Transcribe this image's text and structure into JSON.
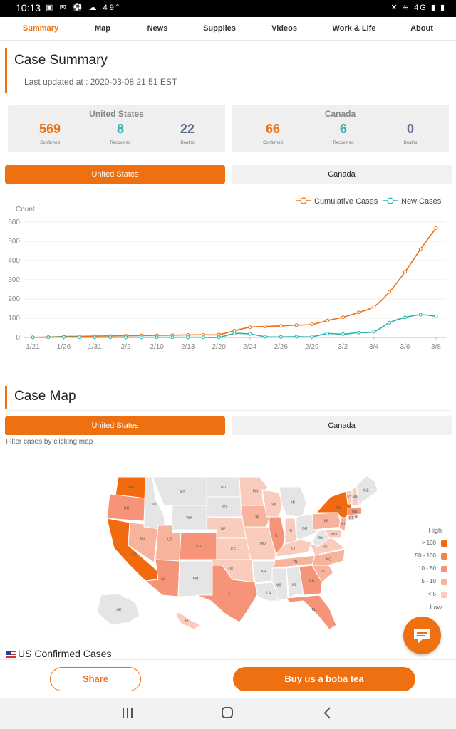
{
  "status_bar": {
    "time": "10:13",
    "temperature": "49°",
    "signal": "4G"
  },
  "nav": {
    "tabs": [
      {
        "label": "Summary",
        "active": true
      },
      {
        "label": "Map"
      },
      {
        "label": "News"
      },
      {
        "label": "Supplies"
      },
      {
        "label": "Videos"
      },
      {
        "label": "Work & Life"
      },
      {
        "label": "About"
      }
    ]
  },
  "summary": {
    "title": "Case Summary",
    "last_updated": "Last updated at : 2020-03-08 21:51 EST",
    "cards": [
      {
        "country": "United States",
        "confirmed": "569",
        "recovered": "8",
        "deaths": "22"
      },
      {
        "country": "Canada",
        "confirmed": "66",
        "recovered": "6",
        "deaths": "0"
      }
    ],
    "labels": {
      "confirmed": "Confirmed",
      "recovered": "Recovered",
      "deaths": "Deaths"
    },
    "toggle": {
      "left": "United States",
      "right": "Canada",
      "selected": "United States"
    }
  },
  "chart_data": {
    "type": "line",
    "ylabel": "Count",
    "ylim": [
      0,
      600
    ],
    "yticks": [
      0,
      100,
      200,
      300,
      400,
      500,
      600
    ],
    "x": [
      "1/21",
      "1/23",
      "1/26",
      "1/28",
      "1/31",
      "2/1",
      "2/2",
      "2/5",
      "2/10",
      "2/12",
      "2/13",
      "2/16",
      "2/20",
      "2/22",
      "2/24",
      "2/25",
      "2/26",
      "2/28",
      "2/29",
      "3/1",
      "3/2",
      "3/3",
      "3/4",
      "3/5",
      "3/6",
      "3/7",
      "3/8"
    ],
    "xticks": [
      "1/21",
      "1/26",
      "1/31",
      "2/2",
      "2/10",
      "2/13",
      "2/20",
      "2/24",
      "2/26",
      "2/29",
      "3/2",
      "3/4",
      "3/6",
      "3/8"
    ],
    "series": [
      {
        "name": "Cumulative Cases",
        "color": "#ee7011",
        "values": [
          1,
          2,
          5,
          6,
          7,
          8,
          9,
          10,
          11,
          12,
          13,
          14,
          15,
          35,
          53,
          57,
          60,
          64,
          68,
          88,
          105,
          130,
          160,
          237,
          341,
          459,
          569
        ]
      },
      {
        "name": "New Cases",
        "color": "#2ab3aa",
        "values": [
          1,
          1,
          3,
          1,
          1,
          1,
          1,
          1,
          1,
          1,
          1,
          1,
          1,
          20,
          18,
          4,
          3,
          4,
          4,
          20,
          17,
          25,
          30,
          77,
          104,
          118,
          110
        ]
      }
    ],
    "legend_placement": "top-right",
    "grid": true
  },
  "map": {
    "title": "Case Map",
    "toggle": {
      "left": "United States",
      "right": "Canada",
      "selected": "United States"
    },
    "filter_note": "Filter cases by clicking map",
    "legend": {
      "high": "High",
      "low": "Low",
      "levels": [
        {
          "label": "> 100",
          "color": "#f26a10"
        },
        {
          "label": "50 - 100",
          "color": "#f5834a"
        },
        {
          "label": "10 - 50",
          "color": "#f59478"
        },
        {
          "label": "5 - 10",
          "color": "#f7b39c"
        },
        {
          "label": "< 5",
          "color": "#f9ccbd"
        }
      ],
      "no_data_color": "#e5e5e5"
    },
    "states": [
      {
        "abbr": "WA",
        "level": "> 100"
      },
      {
        "abbr": "OR",
        "level": "10 - 50"
      },
      {
        "abbr": "CA",
        "level": "> 100"
      },
      {
        "abbr": "NV",
        "level": "5 - 10"
      },
      {
        "abbr": "ID"
      },
      {
        "abbr": "MT"
      },
      {
        "abbr": "WY"
      },
      {
        "abbr": "UT",
        "level": "5 - 10"
      },
      {
        "abbr": "AZ",
        "level": "10 - 50"
      },
      {
        "abbr": "CO",
        "level": "10 - 50"
      },
      {
        "abbr": "NM"
      },
      {
        "abbr": "ND"
      },
      {
        "abbr": "SD"
      },
      {
        "abbr": "NE",
        "level": "< 5"
      },
      {
        "abbr": "KS",
        "level": "< 5"
      },
      {
        "abbr": "OK",
        "level": "< 5"
      },
      {
        "abbr": "TX",
        "level": "10 - 50"
      },
      {
        "abbr": "MN",
        "level": "< 5"
      },
      {
        "abbr": "IA",
        "level": "5 - 10"
      },
      {
        "abbr": "MO",
        "level": "< 5"
      },
      {
        "abbr": "AR"
      },
      {
        "abbr": "LA"
      },
      {
        "abbr": "WI",
        "level": "< 5"
      },
      {
        "abbr": "IL",
        "level": "10 - 50"
      },
      {
        "abbr": "MI"
      },
      {
        "abbr": "IN",
        "level": "< 5"
      },
      {
        "abbr": "OH"
      },
      {
        "abbr": "KY",
        "level": "< 5"
      },
      {
        "abbr": "TN",
        "level": "5 - 10"
      },
      {
        "abbr": "MS"
      },
      {
        "abbr": "AL"
      },
      {
        "abbr": "GA",
        "level": "10 - 50"
      },
      {
        "abbr": "FL",
        "level": "10 - 50"
      },
      {
        "abbr": "SC",
        "level": "5 - 10"
      },
      {
        "abbr": "NC",
        "level": "5 - 10"
      },
      {
        "abbr": "VA",
        "level": "< 5"
      },
      {
        "abbr": "WV"
      },
      {
        "abbr": "MD",
        "level": "< 5"
      },
      {
        "abbr": "PA",
        "level": "5 - 10"
      },
      {
        "abbr": "NY",
        "level": "> 100"
      },
      {
        "abbr": "NJ",
        "level": "5 - 10"
      },
      {
        "abbr": "CT",
        "level": "< 5"
      },
      {
        "abbr": "RI",
        "level": "< 5"
      },
      {
        "abbr": "MA",
        "level": "10 - 50"
      },
      {
        "abbr": "VT",
        "level": "< 5"
      },
      {
        "abbr": "NH",
        "level": "< 5"
      },
      {
        "abbr": "ME"
      },
      {
        "abbr": "AK"
      },
      {
        "abbr": "HI",
        "level": "< 5"
      }
    ]
  },
  "us_confirmed_heading": "US Confirmed Cases",
  "bottom": {
    "share": "Share",
    "donate": "Buy us a boba tea"
  },
  "system_nav": {
    "icons": [
      "recent-apps-icon",
      "home-icon",
      "back-icon"
    ]
  }
}
